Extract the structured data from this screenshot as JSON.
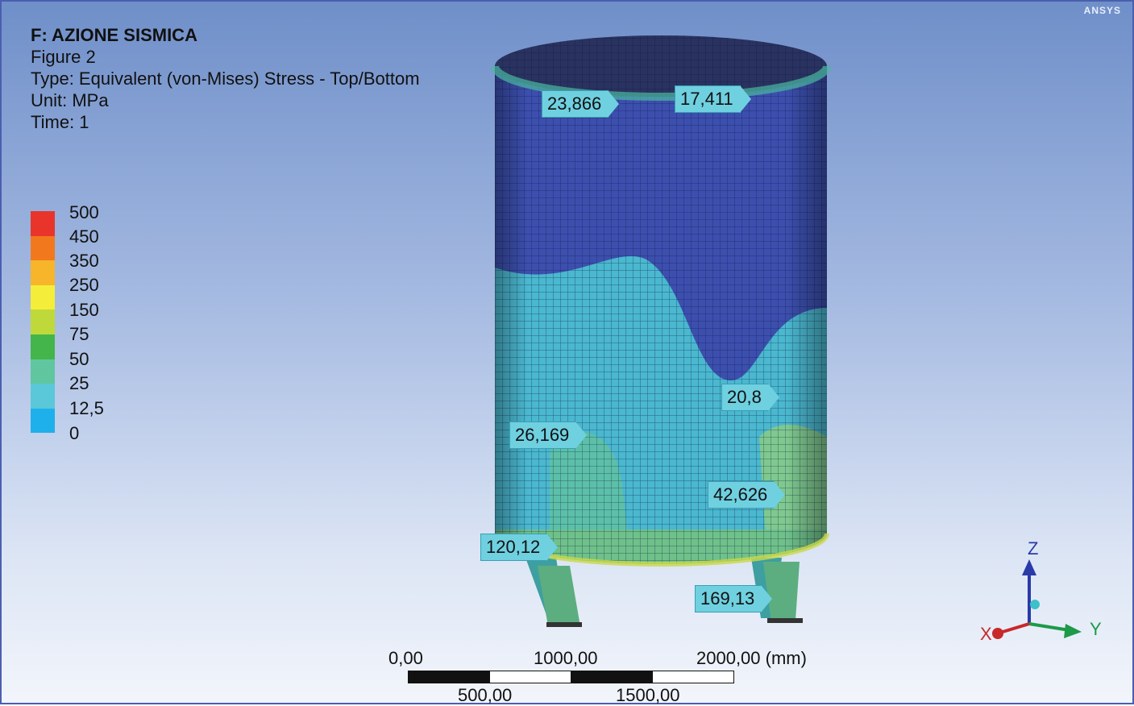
{
  "info": {
    "title": "F: AZIONE SISMICA",
    "figure": "Figure 2",
    "type": "Type: Equivalent (von-Mises) Stress - Top/Bottom",
    "unit": "Unit: MPa",
    "time": "Time: 1"
  },
  "brand": "ANSYS",
  "legend": {
    "labels": [
      "500",
      "450",
      "350",
      "250",
      "150",
      "75",
      "50",
      "25",
      "12,5",
      "0"
    ],
    "colors": [
      "#e8342a",
      "#f2781e",
      "#f6b52a",
      "#f4ee3a",
      "#bfd93a",
      "#43b54a",
      "#5fc6a0",
      "#5ac8d8",
      "#1eb0ea",
      "#3b4fa8"
    ]
  },
  "probes": [
    "23,866",
    "17,411",
    "20,8",
    "26,169",
    "42,626",
    "120,12",
    "169,13"
  ],
  "scale": {
    "top_labels": [
      "0,00",
      "1000,00",
      "2000,00 (mm)"
    ],
    "bottom_labels": [
      "500,00",
      "1500,00"
    ]
  },
  "axes": {
    "z": "Z",
    "x": "X",
    "y": "Y"
  }
}
